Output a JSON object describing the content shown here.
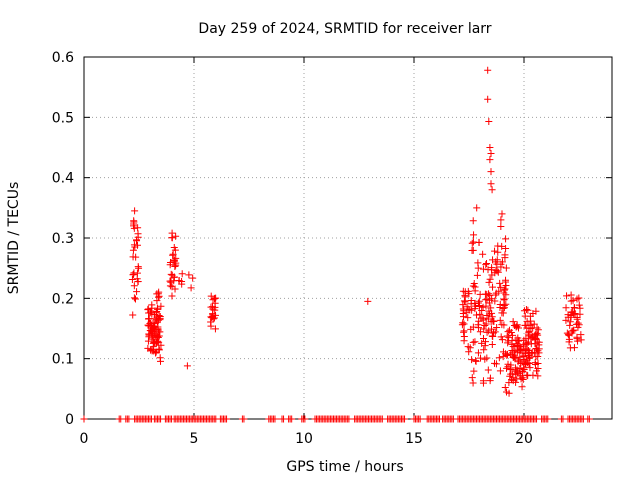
{
  "chart_data": {
    "type": "scatter",
    "title": "Day 259 of 2024, SRMTID for receiver larr",
    "xlabel": "GPS time / hours",
    "ylabel": "SRMTID / TECUs",
    "xlim": [
      0,
      24
    ],
    "ylim": [
      0,
      0.6
    ],
    "xticks": [
      0,
      5,
      10,
      15,
      20
    ],
    "xtick_labels": [
      "0",
      "5",
      "10",
      "15",
      "20"
    ],
    "yticks": [
      0,
      0.1,
      0.2,
      0.3,
      0.4,
      0.5,
      0.6
    ],
    "ytick_labels": [
      "0",
      "0.1",
      "0.2",
      "0.3",
      "0.4",
      "0.5",
      "0.6"
    ],
    "grid": true,
    "marker": "+",
    "color": "#ff0000",
    "series": [
      {
        "name": "SRMTID",
        "clusters": [
          {
            "x_range": [
              2.2,
              2.5
            ],
            "y_range": [
              0.16,
              0.345
            ],
            "count": 30
          },
          {
            "x_range": [
              2.9,
              3.5
            ],
            "y_range": [
              0.09,
              0.2
            ],
            "count": 90
          },
          {
            "x_range": [
              3.3,
              3.45
            ],
            "y_range": [
              0.19,
              0.22
            ],
            "count": 6
          },
          {
            "x_range": [
              3.9,
              4.2
            ],
            "y_range": [
              0.19,
              0.31
            ],
            "count": 30
          },
          {
            "x_range": [
              4.3,
              5.0
            ],
            "y_range": [
              0.21,
              0.26
            ],
            "count": 8
          },
          {
            "x_range": [
              5.75,
              6.0
            ],
            "y_range": [
              0.14,
              0.215
            ],
            "count": 22
          },
          {
            "x_range": [
              17.2,
              17.6
            ],
            "y_range": [
              0.1,
              0.25
            ],
            "count": 30
          },
          {
            "x_range": [
              17.6,
              18.0
            ],
            "y_range": [
              0.04,
              0.35
            ],
            "count": 40
          },
          {
            "x_range": [
              18.0,
              18.6
            ],
            "y_range": [
              0.04,
              0.3
            ],
            "count": 60
          },
          {
            "x_range": [
              18.6,
              19.2
            ],
            "y_range": [
              0.05,
              0.34
            ],
            "count": 60
          },
          {
            "x_range": [
              19.2,
              20.0
            ],
            "y_range": [
              0.04,
              0.17
            ],
            "count": 90
          },
          {
            "x_range": [
              20.0,
              20.7
            ],
            "y_range": [
              0.06,
              0.2
            ],
            "count": 80
          },
          {
            "x_range": [
              21.9,
              22.6
            ],
            "y_range": [
              0.1,
              0.23
            ],
            "count": 45
          }
        ],
        "points": [
          {
            "x": 2.3,
            "y": 0.345
          },
          {
            "x": 2.25,
            "y": 0.32
          },
          {
            "x": 4.7,
            "y": 0.088
          },
          {
            "x": 12.9,
            "y": 0.195
          },
          {
            "x": 18.35,
            "y": 0.578
          },
          {
            "x": 18.35,
            "y": 0.53
          },
          {
            "x": 18.4,
            "y": 0.493
          },
          {
            "x": 18.45,
            "y": 0.45
          },
          {
            "x": 18.5,
            "y": 0.44
          },
          {
            "x": 18.45,
            "y": 0.43
          },
          {
            "x": 18.5,
            "y": 0.41
          },
          {
            "x": 18.5,
            "y": 0.39
          },
          {
            "x": 18.55,
            "y": 0.38
          },
          {
            "x": 17.85,
            "y": 0.35
          },
          {
            "x": 19.0,
            "y": 0.34
          },
          {
            "x": 18.95,
            "y": 0.33
          }
        ],
        "zero_ranges": [
          [
            0.0,
            0.05
          ],
          [
            1.6,
            1.7
          ],
          [
            1.9,
            2.05
          ],
          [
            2.3,
            3.1
          ],
          [
            3.2,
            3.5
          ],
          [
            3.7,
            4.0
          ],
          [
            4.1,
            6.0
          ],
          [
            6.2,
            6.5
          ],
          [
            7.2,
            7.3
          ],
          [
            8.4,
            8.7
          ],
          [
            9.0,
            9.1
          ],
          [
            9.3,
            9.5
          ],
          [
            9.9,
            10.1
          ],
          [
            10.5,
            12.1
          ],
          [
            12.3,
            13.6
          ],
          [
            13.8,
            14.6
          ],
          [
            15.0,
            15.3
          ],
          [
            15.6,
            16.2
          ],
          [
            16.3,
            16.8
          ],
          [
            17.0,
            20.6
          ],
          [
            20.8,
            21.1
          ],
          [
            21.7,
            21.8
          ],
          [
            22.0,
            22.7
          ],
          [
            22.9,
            23.0
          ]
        ]
      }
    ]
  }
}
